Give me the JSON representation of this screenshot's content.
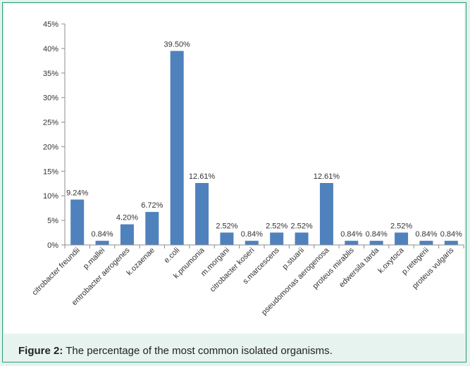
{
  "caption": {
    "label": "Figure 2:",
    "text": " The percentage of the most common isolated organisms."
  },
  "chart_data": {
    "type": "bar",
    "categories": [
      "citrobacter freundii",
      "p.mallei",
      "entrobacter aerogenes",
      "k.ozaenae",
      "e.coli",
      "k.pnumonia",
      "m.morgani",
      "citrobacter koseri",
      "s.marcescens",
      "p.stuarii",
      "pseudomonas aerogenosa",
      "proteus mirablis",
      "edwersila tarda",
      "k.oxytoca",
      "p.retegerii",
      "proteus vulgaris"
    ],
    "values": [
      9.24,
      0.84,
      4.2,
      6.72,
      39.5,
      12.61,
      2.52,
      0.84,
      2.52,
      2.52,
      12.61,
      0.84,
      0.84,
      2.52,
      0.84,
      0.84
    ],
    "data_labels": [
      "9.24%",
      "0.84%",
      "4.20%",
      "6.72%",
      "39.50%",
      "12.61%",
      "2.52%",
      "0.84%",
      "2.52%",
      "2.52%",
      "12.61%",
      "0.84%",
      "0.84%",
      "2.52%",
      "0.84%",
      "0.84%"
    ],
    "yticks": [
      "0%",
      "5%",
      "10%",
      "15%",
      "20%",
      "25%",
      "30%",
      "35%",
      "40%",
      "45%"
    ],
    "ylim": [
      0,
      45
    ],
    "grid": false,
    "bar_color": "#4f81bd",
    "axis_color": "#8c8c8c"
  }
}
